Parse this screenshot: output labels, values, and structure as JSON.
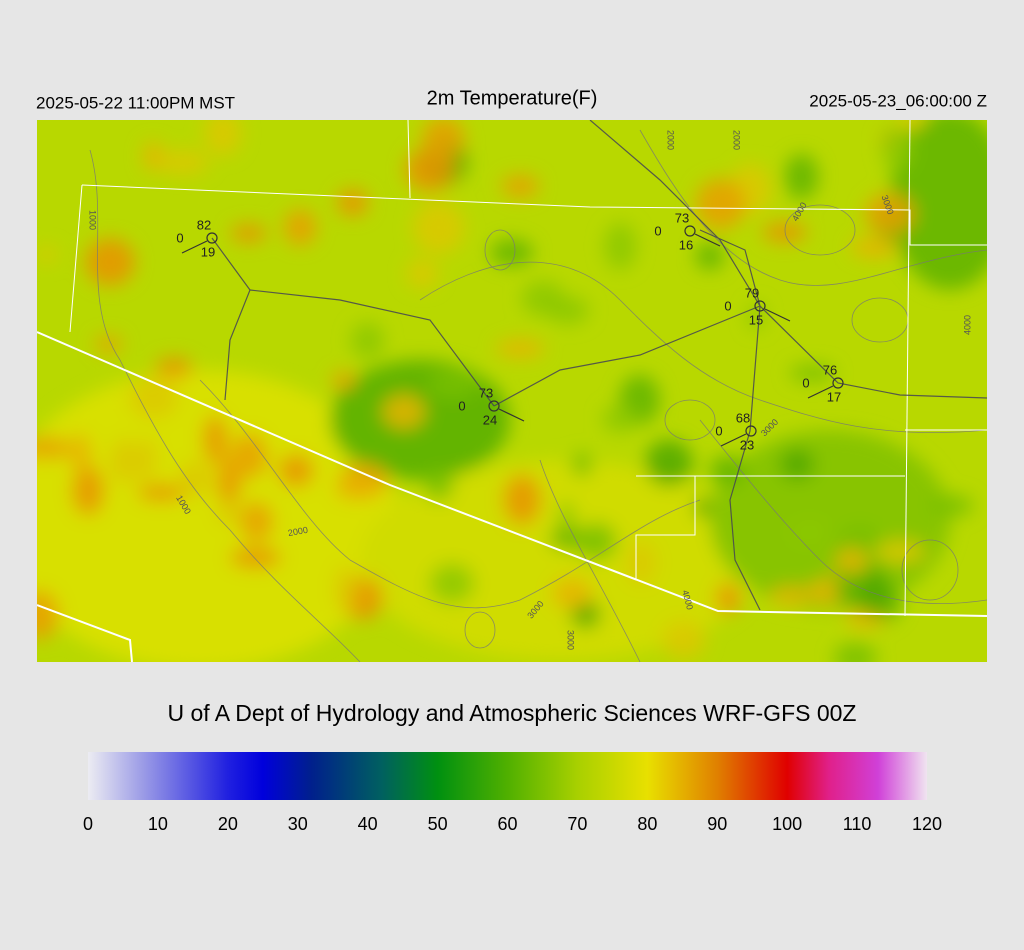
{
  "header": {
    "left": "2025-05-22 11:00PM MST",
    "title": "2m Temperature(F)",
    "right": "2025-05-23_06:00:00 Z"
  },
  "stations": [
    {
      "temperature": "82",
      "wind": "0",
      "dewpoint": "19"
    },
    {
      "temperature": "73",
      "wind": "0",
      "dewpoint": "16"
    },
    {
      "temperature": "79",
      "wind": "0",
      "dewpoint": "15"
    },
    {
      "temperature": "76",
      "wind": "0",
      "dewpoint": "17"
    },
    {
      "temperature": "73",
      "wind": "0",
      "dewpoint": "24"
    },
    {
      "temperature": "68",
      "wind": "0",
      "dewpoint": "23"
    }
  ],
  "contour_labels": [
    "1000",
    "2000",
    "2000",
    "4000",
    "3000",
    "4000",
    "1000",
    "2000",
    "3000",
    "3000",
    "3000",
    "4000"
  ],
  "credit": "U of A Dept of Hydrology and Atmospheric Sciences WRF-GFS 00Z",
  "colorbar": {
    "range": [
      0,
      120
    ],
    "ticks": [
      0,
      10,
      20,
      30,
      40,
      50,
      60,
      70,
      80,
      90,
      100,
      110,
      120
    ],
    "stops": [
      {
        "value": 0,
        "color": "#ececf2"
      },
      {
        "value": 8,
        "color": "#9a9ae6"
      },
      {
        "value": 20,
        "color": "#2020e0"
      },
      {
        "value": 25,
        "color": "#0000dc"
      },
      {
        "value": 32,
        "color": "#00208c"
      },
      {
        "value": 42,
        "color": "#006060"
      },
      {
        "value": 50,
        "color": "#009010"
      },
      {
        "value": 60,
        "color": "#50b000"
      },
      {
        "value": 70,
        "color": "#a8d000"
      },
      {
        "value": 80,
        "color": "#e8e000"
      },
      {
        "value": 90,
        "color": "#e08000"
      },
      {
        "value": 100,
        "color": "#e00000"
      },
      {
        "value": 106,
        "color": "#e0208a"
      },
      {
        "value": 113,
        "color": "#d040d8"
      },
      {
        "value": 120,
        "color": "#f0e4f0"
      }
    ]
  }
}
